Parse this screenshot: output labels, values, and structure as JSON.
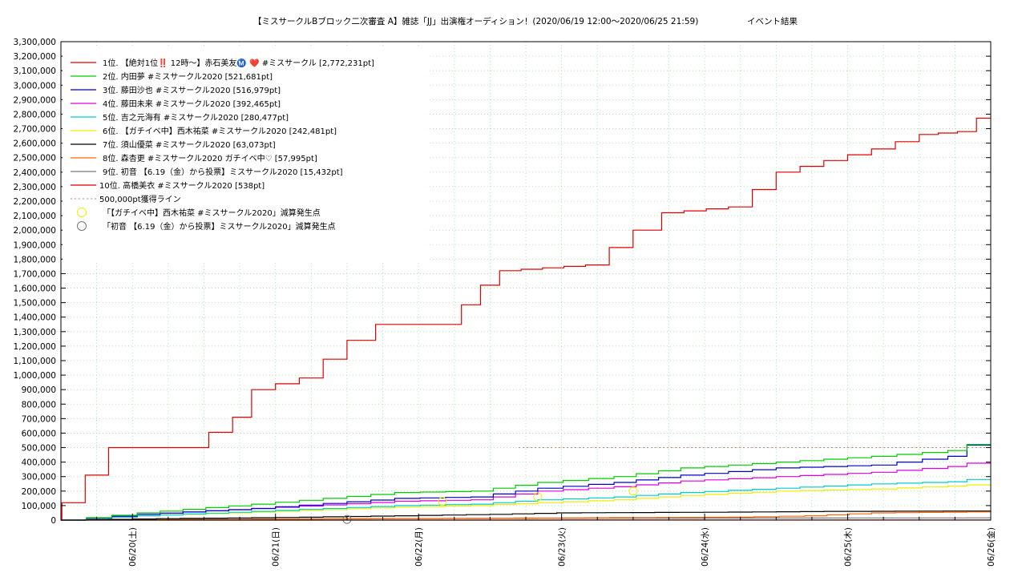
{
  "chart_data": {
    "type": "line",
    "title": "【ミスサークルBブロック二次審査 A】雑誌「JJ」出演権オーディション！(2020/06/19 12:00〜2020/06/25 21:59)",
    "title_suffix": "イベント結果",
    "xlabel": "",
    "ylabel": "",
    "ylim": [
      0,
      3300000
    ],
    "y_ticks": [
      "0",
      "100,000",
      "200,000",
      "300,000",
      "400,000",
      "500,000",
      "600,000",
      "700,000",
      "800,000",
      "900,000",
      "1,000,000",
      "1,100,000",
      "1,200,000",
      "1,300,000",
      "1,400,000",
      "1,500,000",
      "1,600,000",
      "1,700,000",
      "1,800,000",
      "1,900,000",
      "2,000,000",
      "2,100,000",
      "2,200,000",
      "2,300,000",
      "2,400,000",
      "2,500,000",
      "2,600,000",
      "2,700,000",
      "2,800,000",
      "2,900,000",
      "3,000,000",
      "3,100,000",
      "3,200,000",
      "3,300,000"
    ],
    "x_range_days": [
      "06/19 12:00",
      "06/26 00:00"
    ],
    "x_ticks": [
      "06/20(土)",
      "06/21(日)",
      "06/22(月)",
      "06/23(火)",
      "06/24(水)",
      "06/25(木)",
      "06/26(金)"
    ],
    "grid": true,
    "legend_position": "top-left",
    "series": [
      {
        "name": "1位. 【絶対1位‼️ 12時〜】赤石美友Ⓜ️ ❤️ #ミスサークル [2,772,231pt]",
        "color": "#dd0000",
        "final": 2772231,
        "points": [
          [
            0,
            0
          ],
          [
            0.01,
            120000
          ],
          [
            0.5,
            500000
          ],
          [
            1.3,
            500000
          ],
          [
            1.8,
            710000
          ],
          [
            2,
            900000
          ],
          [
            2.5,
            980000
          ],
          [
            3,
            1240000
          ],
          [
            3.3,
            1350000
          ],
          [
            4,
            1350000
          ],
          [
            4.4,
            1620000
          ],
          [
            4.6,
            1720000
          ],
          [
            5.5,
            1760000
          ],
          [
            6,
            2000000
          ],
          [
            6.3,
            2120000
          ],
          [
            7,
            2160000
          ],
          [
            7.5,
            2400000
          ],
          [
            8,
            2480000
          ],
          [
            8.5,
            2560000
          ],
          [
            9,
            2660000
          ],
          [
            9.4,
            2680000
          ],
          [
            9.6,
            2772231
          ],
          [
            9.75,
            2772231
          ]
        ]
      },
      {
        "name": "2位. 内田夢 #ミスサークル2020 [521,681pt]",
        "color": "#00cc00",
        "final": 521681,
        "points": [
          [
            0,
            0
          ],
          [
            0.8,
            50000
          ],
          [
            2,
            110000
          ],
          [
            3.5,
            190000
          ],
          [
            4.3,
            200000
          ],
          [
            5,
            260000
          ],
          [
            5.8,
            300000
          ],
          [
            6.5,
            360000
          ],
          [
            7.5,
            400000
          ],
          [
            8.5,
            440000
          ],
          [
            9.3,
            480000
          ],
          [
            9.5,
            521681
          ],
          [
            9.75,
            521681
          ]
        ]
      },
      {
        "name": "3位. 藤田沙也 #ミスサークル2020 [516,979pt]",
        "color": "#0000cc",
        "final": 516979,
        "points": [
          [
            0,
            0
          ],
          [
            0.8,
            40000
          ],
          [
            2,
            80000
          ],
          [
            3.5,
            150000
          ],
          [
            4.3,
            160000
          ],
          [
            5,
            220000
          ],
          [
            5.8,
            260000
          ],
          [
            6.5,
            310000
          ],
          [
            7.5,
            360000
          ],
          [
            8.5,
            380000
          ],
          [
            9.3,
            440000
          ],
          [
            9.5,
            516979
          ],
          [
            9.75,
            516979
          ]
        ]
      },
      {
        "name": "4位. 藤田未来 #ミスサークル2020 [392,465pt]",
        "color": "#dd00dd",
        "final": 392465,
        "points": [
          [
            0,
            0
          ],
          [
            0.8,
            40000
          ],
          [
            2,
            80000
          ],
          [
            3.5,
            130000
          ],
          [
            4.3,
            140000
          ],
          [
            5,
            200000
          ],
          [
            5.8,
            230000
          ],
          [
            6.5,
            270000
          ],
          [
            7.5,
            300000
          ],
          [
            8.5,
            330000
          ],
          [
            9.3,
            370000
          ],
          [
            9.5,
            392465
          ],
          [
            9.75,
            392465
          ]
        ]
      },
      {
        "name": "5位. 吉之元海有 #ミスサークル2020 [280,477pt]",
        "color": "#00cccc",
        "final": 280477,
        "points": [
          [
            0,
            0
          ],
          [
            0.8,
            30000
          ],
          [
            2,
            60000
          ],
          [
            3.5,
            100000
          ],
          [
            4.3,
            110000
          ],
          [
            5,
            140000
          ],
          [
            5.8,
            160000
          ],
          [
            6.5,
            190000
          ],
          [
            7.5,
            220000
          ],
          [
            8.5,
            250000
          ],
          [
            9.3,
            265000
          ],
          [
            9.5,
            280477
          ],
          [
            9.75,
            280477
          ]
        ]
      },
      {
        "name": "6位. 【ガチイベ中】西木祐菜 #ミスサークル2020 [242,481pt]",
        "color": "#eeee00",
        "final": 242481,
        "points": [
          [
            0,
            0
          ],
          [
            0.8,
            30000
          ],
          [
            2,
            55000
          ],
          [
            3.5,
            90000
          ],
          [
            4.3,
            100000
          ],
          [
            5,
            120000
          ],
          [
            5.8,
            140000
          ],
          [
            6.5,
            170000
          ],
          [
            7.5,
            200000
          ],
          [
            8.5,
            215000
          ],
          [
            9.3,
            235000
          ],
          [
            9.5,
            242481
          ],
          [
            9.75,
            242481
          ]
        ]
      },
      {
        "name": "7位. 須山優菜 #ミスサークル2020 [63,073pt]",
        "color": "#000000",
        "final": 63073,
        "points": [
          [
            0,
            0
          ],
          [
            1,
            10000
          ],
          [
            2.5,
            20000
          ],
          [
            3.5,
            30000
          ],
          [
            4.5,
            40000
          ],
          [
            5.2,
            50000
          ],
          [
            7,
            55000
          ],
          [
            8,
            60000
          ],
          [
            9.75,
            63073
          ]
        ]
      },
      {
        "name": "8位. 森杏更 #ミスサークル2020 ガチイベ中♡ [57,995pt]",
        "color": "#ff6600",
        "final": 57995,
        "points": [
          [
            0,
            0
          ],
          [
            2,
            5000
          ],
          [
            3.5,
            10000
          ],
          [
            5,
            15000
          ],
          [
            7,
            20000
          ],
          [
            7.8,
            30000
          ],
          [
            8.5,
            50000
          ],
          [
            9.75,
            57995
          ]
        ]
      },
      {
        "name": "9位. 初音 【6.19（金）から投票】ミスサークル2020 [15,432pt]",
        "color": "#777777",
        "final": 15432,
        "points": [
          [
            0,
            0
          ],
          [
            1,
            5000
          ],
          [
            3,
            10000
          ],
          [
            5,
            12000
          ],
          [
            7,
            14000
          ],
          [
            9.75,
            15432
          ]
        ]
      },
      {
        "name": "10位. 高橋美衣 #ミスサークル2020 [538pt]",
        "color": "#dd0000",
        "final": 538,
        "points": [
          [
            0,
            0
          ],
          [
            9.75,
            538
          ]
        ]
      }
    ],
    "reference_line": {
      "name": "500,000pt獲得ライン",
      "value": 500000,
      "color": "#c08080"
    },
    "markers": [
      {
        "name": "「【ガチイベ中】西木祐菜 #ミスサークル2020」減算発生点",
        "color": "#eeee00",
        "points": [
          [
            4.0,
            130000
          ],
          [
            5.0,
            160000
          ],
          [
            6.0,
            200000
          ]
        ]
      },
      {
        "name": "「初音 【6.19（金）から投票】ミスサークル2020」減算発生点",
        "color": "#777777",
        "points": [
          [
            3.0,
            5000
          ]
        ]
      }
    ]
  }
}
